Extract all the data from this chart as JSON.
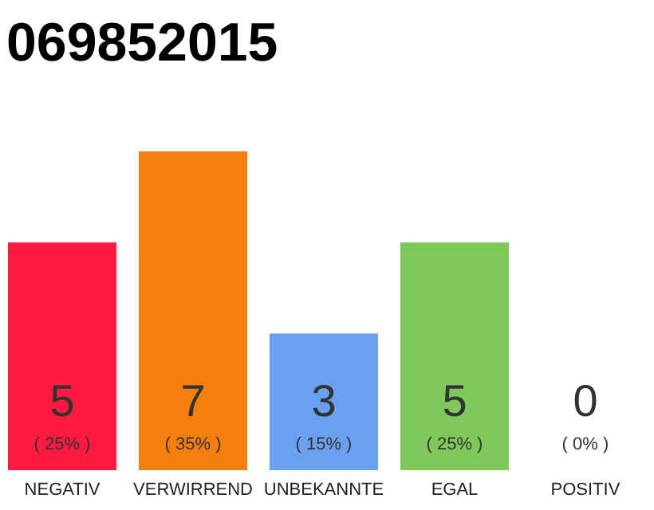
{
  "chart_data": {
    "type": "bar",
    "title": "069852015",
    "categories": [
      "NEGATIV",
      "VERWIRREND",
      "UNBEKANNTE",
      "EGAL",
      "POSITIV"
    ],
    "values": [
      25,
      35,
      15,
      25,
      0
    ],
    "colors": [
      "#ff1a40",
      "#f47f0f",
      "#6aa0ef",
      "#7ec95a",
      "#eeeeee"
    ],
    "value_labels": [
      "( 25% )",
      "( 35% )",
      "( 15% )",
      "( 25% )",
      "( 0% )"
    ],
    "annotations": [
      "5",
      "7",
      "3",
      "5",
      "0"
    ],
    "grid": false
  }
}
